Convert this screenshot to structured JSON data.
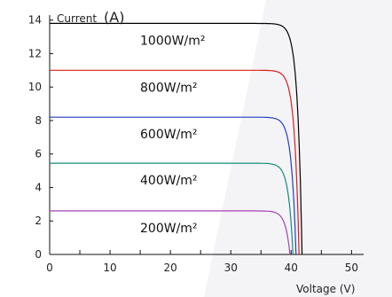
{
  "chart_data": {
    "type": "line",
    "ylabel_word": "Current",
    "ylabel_unit": "(A)",
    "xlabel": "Voltage  (V)",
    "xlim": [
      0,
      52
    ],
    "ylim": [
      0,
      14.3
    ],
    "xticks": [
      0,
      10,
      20,
      30,
      40,
      50
    ],
    "yticks": [
      0,
      2,
      4,
      6,
      8,
      10,
      12,
      14
    ],
    "grid": false,
    "series": [
      {
        "name": "1000W/m²",
        "color": "#000000",
        "isc": 13.8,
        "voc": 41.8
      },
      {
        "name": "800W/m²",
        "color": "#e11a1a",
        "isc": 11.0,
        "voc": 41.3
      },
      {
        "name": "600W/m²",
        "color": "#1f3fbf",
        "isc": 8.2,
        "voc": 40.8
      },
      {
        "name": "400W/m²",
        "color": "#138d7a",
        "isc": 5.45,
        "voc": 40.3
      },
      {
        "name": "200W/m²",
        "color": "#a640b8",
        "isc": 2.6,
        "voc": 39.8
      }
    ]
  }
}
